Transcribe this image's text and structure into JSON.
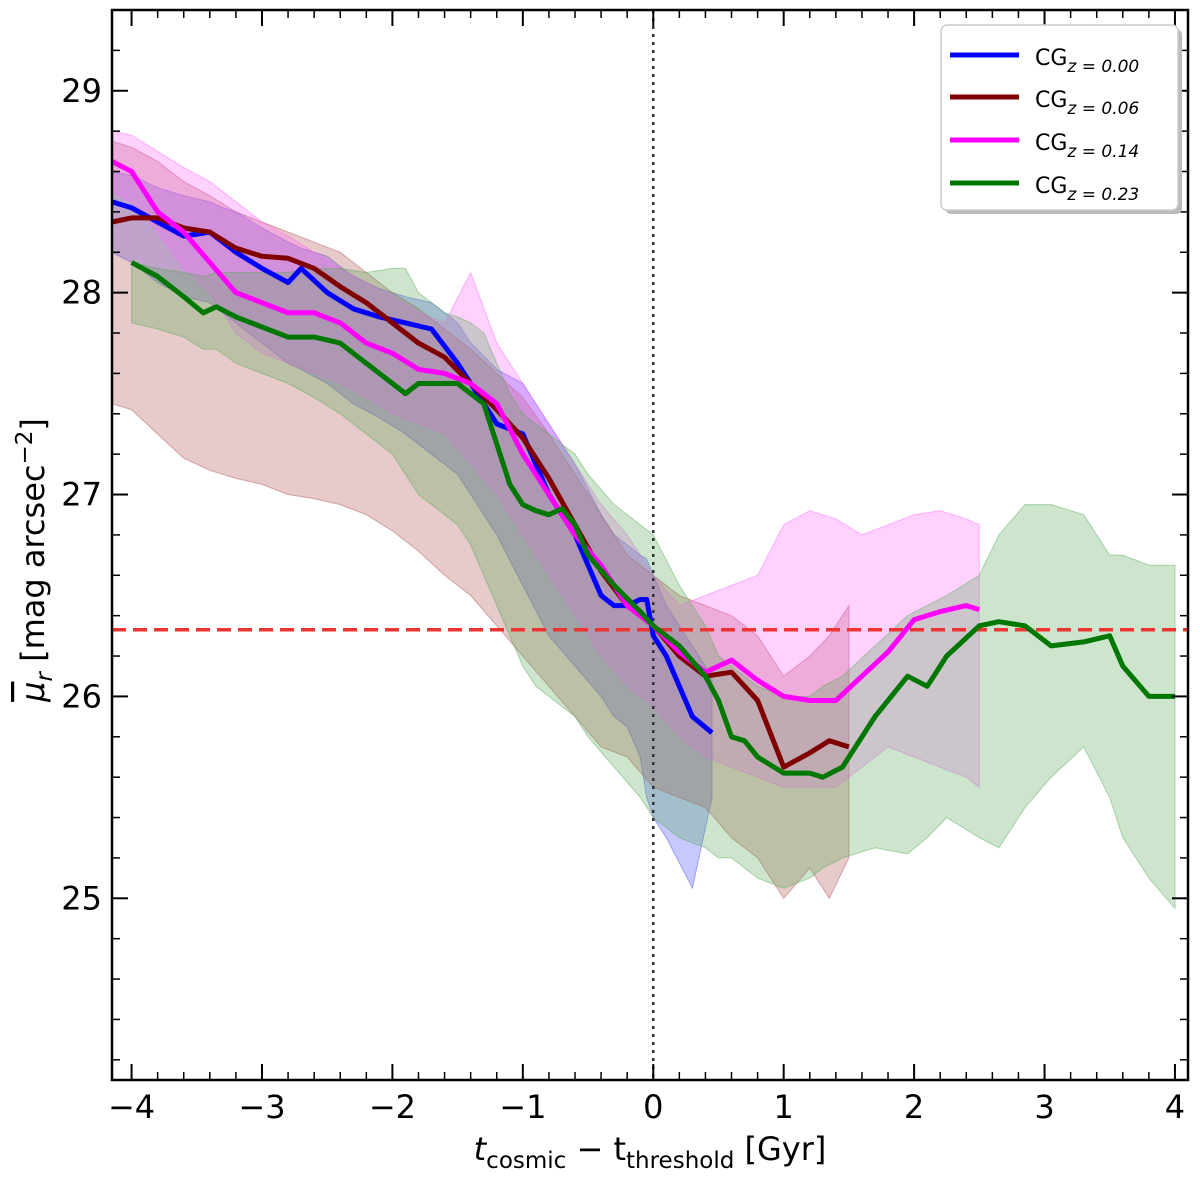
{
  "chart_data": {
    "type": "line",
    "title": "",
    "xlabel": {
      "main": "t",
      "sub1": "cosmic",
      "mid": " − t",
      "sub2": "threshold",
      "unit": " [Gyr]"
    },
    "ylabel": {
      "main": "μ",
      "sub": "r",
      "unit": " [mag arcsec",
      "sup": "−2",
      "close": "]"
    },
    "xlim": [
      -4.15,
      4.1
    ],
    "ylim": [
      24.1,
      29.4
    ],
    "xticks": [
      -4,
      -3,
      -2,
      -1,
      0,
      1,
      2,
      3,
      4
    ],
    "xtick_labels": [
      "−4",
      "−3",
      "−2",
      "−1",
      "0",
      "1",
      "2",
      "3",
      "4"
    ],
    "yticks": [
      25,
      26,
      27,
      28,
      29
    ],
    "ytick_labels": [
      "25",
      "26",
      "27",
      "28",
      "29"
    ],
    "reference_lines": {
      "horizontal": {
        "y": 26.33,
        "color": "#ee3333",
        "style": "dashed"
      },
      "vertical": {
        "x": 0,
        "color": "#333333",
        "style": "dotted"
      }
    },
    "legend": {
      "position": "top-right",
      "entries": [
        {
          "base": "CG",
          "sub": "z = 0.00",
          "color": "#0000ff"
        },
        {
          "base": "CG",
          "sub": "z = 0.06",
          "color": "#800000"
        },
        {
          "base": "CG",
          "sub": "z = 0.14",
          "color": "#ff00ff"
        },
        {
          "base": "CG",
          "sub": "z = 0.23",
          "color": "#007700"
        }
      ]
    },
    "series": [
      {
        "name": "CG z=0.00",
        "color": "#0000ff",
        "fill": "#4a4aff",
        "x": [
          -4.15,
          -4.0,
          -3.8,
          -3.6,
          -3.4,
          -3.3,
          -3.2,
          -3.0,
          -2.8,
          -2.7,
          -2.5,
          -2.3,
          -2.1,
          -1.9,
          -1.7,
          -1.5,
          -1.4,
          -1.2,
          -1.0,
          -0.8,
          -0.6,
          -0.4,
          -0.3,
          -0.2,
          -0.1,
          -0.05,
          0.0,
          0.1,
          0.3,
          0.45
        ],
        "y": [
          28.45,
          28.42,
          28.35,
          28.28,
          28.3,
          28.25,
          28.2,
          28.12,
          28.05,
          28.12,
          28.0,
          27.92,
          27.88,
          27.85,
          27.82,
          27.65,
          27.55,
          27.35,
          27.3,
          27.0,
          26.8,
          26.5,
          26.45,
          26.45,
          26.48,
          26.48,
          26.3,
          26.2,
          25.9,
          25.82
        ],
        "upper": [
          28.6,
          28.58,
          28.52,
          28.48,
          28.45,
          28.42,
          28.4,
          28.32,
          28.25,
          28.22,
          28.18,
          28.08,
          28.02,
          27.98,
          27.95,
          27.85,
          27.75,
          27.62,
          27.55,
          27.35,
          27.15,
          26.9,
          26.8,
          26.75,
          26.7,
          26.68,
          26.6,
          26.45,
          26.25,
          26.1
        ],
        "lower": [
          28.2,
          28.15,
          28.05,
          27.98,
          27.95,
          27.9,
          27.85,
          27.75,
          27.65,
          27.62,
          27.55,
          27.45,
          27.38,
          27.3,
          27.2,
          27.1,
          27.0,
          26.8,
          26.55,
          26.3,
          26.15,
          26.0,
          25.9,
          25.85,
          25.7,
          25.5,
          25.4,
          25.3,
          25.05,
          25.5
        ]
      },
      {
        "name": "CG z=0.06",
        "color": "#800000",
        "fill": "#b05050",
        "x": [
          -4.15,
          -4.0,
          -3.8,
          -3.6,
          -3.4,
          -3.2,
          -3.0,
          -2.8,
          -2.6,
          -2.4,
          -2.2,
          -2.0,
          -1.8,
          -1.6,
          -1.4,
          -1.2,
          -1.0,
          -0.8,
          -0.6,
          -0.4,
          -0.2,
          0.0,
          0.2,
          0.4,
          0.6,
          0.7,
          0.8,
          1.0,
          1.2,
          1.35,
          1.5
        ],
        "y": [
          28.35,
          28.37,
          28.37,
          28.32,
          28.3,
          28.22,
          28.18,
          28.17,
          28.12,
          28.03,
          27.95,
          27.85,
          27.75,
          27.68,
          27.55,
          27.42,
          27.28,
          27.08,
          26.85,
          26.62,
          26.45,
          26.35,
          26.2,
          26.1,
          26.12,
          26.05,
          25.98,
          25.65,
          25.72,
          25.78,
          25.75
        ],
        "upper": [
          28.75,
          28.72,
          28.65,
          28.55,
          28.48,
          28.4,
          28.35,
          28.3,
          28.25,
          28.2,
          28.1,
          28.0,
          27.92,
          27.82,
          27.72,
          27.6,
          27.48,
          27.3,
          27.1,
          26.9,
          26.7,
          26.6,
          26.5,
          26.45,
          26.4,
          26.35,
          26.3,
          26.1,
          26.2,
          26.3,
          26.45
        ],
        "lower": [
          27.45,
          27.42,
          27.3,
          27.18,
          27.12,
          27.08,
          27.05,
          27.0,
          26.98,
          26.95,
          26.9,
          26.82,
          26.72,
          26.6,
          26.5,
          26.35,
          26.2,
          26.05,
          25.9,
          25.75,
          25.7,
          25.55,
          25.5,
          25.45,
          25.3,
          25.25,
          25.2,
          25.0,
          25.15,
          25.0,
          25.2
        ]
      },
      {
        "name": "CG z=0.14",
        "color": "#ff00ff",
        "fill": "#ff66ff",
        "x": [
          -4.15,
          -4.0,
          -3.8,
          -3.6,
          -3.4,
          -3.2,
          -3.0,
          -2.8,
          -2.6,
          -2.4,
          -2.2,
          -2.0,
          -1.8,
          -1.6,
          -1.4,
          -1.2,
          -1.0,
          -0.8,
          -0.6,
          -0.4,
          -0.2,
          0.0,
          0.2,
          0.4,
          0.6,
          0.8,
          1.0,
          1.2,
          1.4,
          1.6,
          1.8,
          2.0,
          2.2,
          2.4,
          2.5
        ],
        "y": [
          28.65,
          28.6,
          28.4,
          28.3,
          28.15,
          28.0,
          27.95,
          27.9,
          27.9,
          27.85,
          27.75,
          27.7,
          27.62,
          27.6,
          27.55,
          27.45,
          27.2,
          27.0,
          26.8,
          26.65,
          26.45,
          26.35,
          26.22,
          26.12,
          26.18,
          26.08,
          26.0,
          25.98,
          25.98,
          26.1,
          26.22,
          26.38,
          26.42,
          26.45,
          26.43
        ],
        "upper": [
          28.8,
          28.78,
          28.7,
          28.62,
          28.55,
          28.45,
          28.35,
          28.28,
          28.2,
          28.12,
          28.05,
          27.98,
          27.9,
          27.85,
          28.1,
          27.75,
          27.55,
          27.35,
          27.15,
          26.95,
          26.8,
          26.6,
          26.45,
          26.5,
          26.55,
          26.6,
          26.85,
          26.92,
          26.88,
          26.8,
          26.85,
          26.9,
          26.92,
          26.88,
          26.85
        ],
        "lower": [
          28.5,
          28.45,
          28.3,
          28.12,
          28.0,
          27.8,
          27.7,
          27.65,
          27.6,
          27.55,
          27.48,
          27.4,
          27.35,
          27.3,
          27.15,
          27.0,
          26.8,
          26.6,
          26.4,
          26.2,
          26.05,
          25.95,
          25.8,
          25.7,
          25.65,
          25.6,
          25.55,
          25.55,
          25.55,
          25.65,
          25.75,
          25.7,
          25.65,
          25.6,
          25.55
        ]
      },
      {
        "name": "CG z=0.23",
        "color": "#007700",
        "fill": "#55aa55",
        "x": [
          -4.0,
          -3.8,
          -3.6,
          -3.45,
          -3.35,
          -3.2,
          -3.0,
          -2.8,
          -2.6,
          -2.4,
          -2.2,
          -2.0,
          -1.9,
          -1.8,
          -1.6,
          -1.5,
          -1.4,
          -1.3,
          -1.2,
          -1.1,
          -1.0,
          -0.9,
          -0.8,
          -0.7,
          -0.6,
          -0.5,
          -0.3,
          -0.1,
          0.0,
          0.2,
          0.4,
          0.5,
          0.6,
          0.7,
          0.8,
          1.0,
          1.2,
          1.3,
          1.45,
          1.7,
          1.95,
          2.1,
          2.25,
          2.5,
          2.65,
          2.85,
          3.05,
          3.3,
          3.5,
          3.6,
          3.8,
          4.0
        ],
        "y": [
          28.15,
          28.08,
          27.98,
          27.9,
          27.93,
          27.88,
          27.83,
          27.78,
          27.78,
          27.75,
          27.65,
          27.55,
          27.5,
          27.55,
          27.55,
          27.55,
          27.5,
          27.45,
          27.25,
          27.05,
          26.95,
          26.92,
          26.9,
          26.93,
          26.85,
          26.7,
          26.55,
          26.42,
          26.35,
          26.25,
          26.1,
          25.98,
          25.8,
          25.78,
          25.7,
          25.62,
          25.62,
          25.6,
          25.65,
          25.9,
          26.1,
          26.05,
          26.2,
          26.35,
          26.37,
          26.35,
          26.25,
          26.27,
          26.3,
          26.15,
          26.0,
          26.0
        ],
        "upper": [
          28.15,
          28.12,
          28.1,
          28.08,
          28.1,
          28.1,
          28.1,
          28.1,
          28.12,
          28.12,
          28.1,
          28.12,
          28.12,
          28.0,
          27.9,
          27.88,
          27.85,
          27.8,
          27.65,
          27.5,
          27.4,
          27.35,
          27.3,
          27.25,
          27.2,
          27.1,
          26.95,
          26.85,
          26.8,
          26.55,
          26.35,
          26.2,
          26.15,
          26.1,
          26.05,
          26.0,
          26.0,
          26.05,
          26.1,
          26.25,
          26.4,
          26.45,
          26.5,
          26.6,
          26.8,
          26.95,
          26.95,
          26.9,
          26.7,
          26.7,
          26.65,
          26.65
        ],
        "lower": [
          27.85,
          27.82,
          27.78,
          27.72,
          27.72,
          27.65,
          27.6,
          27.55,
          27.48,
          27.4,
          27.3,
          27.2,
          27.1,
          27.0,
          26.9,
          26.85,
          26.75,
          26.6,
          26.45,
          26.3,
          26.15,
          26.05,
          26.0,
          25.95,
          25.9,
          25.8,
          25.65,
          25.5,
          25.4,
          25.3,
          25.25,
          25.2,
          25.2,
          25.15,
          25.1,
          25.05,
          25.1,
          25.15,
          25.2,
          25.25,
          25.22,
          25.3,
          25.4,
          25.3,
          25.25,
          25.45,
          25.6,
          25.75,
          25.5,
          25.3,
          25.1,
          24.95
        ]
      }
    ]
  }
}
